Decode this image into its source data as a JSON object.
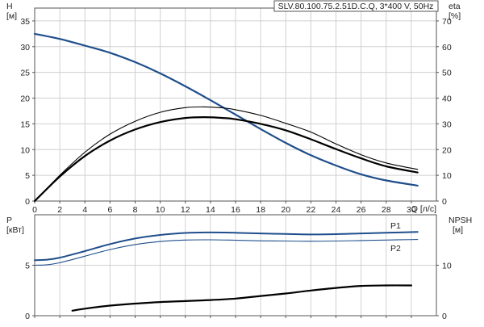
{
  "colors": {
    "head_curve": "#1f4e8c",
    "eta_curve": "#000000",
    "p1_curve": "#1f4e8c",
    "p2_curve": "#1f4e8c",
    "npsh_curve": "#000000",
    "grid": "#d0d0d0",
    "frame": "#555555"
  },
  "chart_data": [
    {
      "type": "line",
      "title": "SLV.80.100.75.2.51D.C.Q, 3*400 V, 50Hz",
      "xlabel": "Q [л/с]",
      "x_unit_label": "Q [л/с]",
      "x_ticks": [
        0,
        2,
        4,
        6,
        8,
        10,
        12,
        14,
        16,
        18,
        20,
        22,
        24,
        26,
        28,
        30
      ],
      "xlim": [
        0,
        32
      ],
      "left_axis": {
        "label": "H",
        "unit": "[м]",
        "ticks": [
          0,
          5,
          10,
          15,
          20,
          25,
          30,
          35
        ],
        "lim": [
          0,
          37.5
        ]
      },
      "right_axis": {
        "label": "eta",
        "unit": "[%]",
        "ticks": [
          0,
          10,
          20,
          30,
          40,
          50,
          60,
          70
        ],
        "lim": [
          0,
          75
        ]
      },
      "grid": true,
      "series": [
        {
          "axis": "left",
          "style": "head",
          "x": [
            0,
            2,
            4,
            6,
            8,
            10,
            12,
            14,
            16,
            18,
            20,
            22,
            24,
            26,
            28,
            30.5
          ],
          "y": [
            32.5,
            31.5,
            30.2,
            28.8,
            27.0,
            24.8,
            22.3,
            19.6,
            16.8,
            14.0,
            11.3,
            8.9,
            6.9,
            5.2,
            4.0,
            3.0
          ]
        },
        {
          "axis": "right",
          "style": "eta_upper",
          "x": [
            0,
            2,
            4,
            6,
            8,
            10,
            12,
            13.5,
            15,
            16,
            18,
            20,
            22,
            24,
            26,
            28,
            30.5
          ],
          "y": [
            0,
            10,
            19,
            26,
            31,
            34.5,
            36.3,
            36.6,
            36.2,
            35.5,
            33.3,
            30.2,
            26.8,
            22.2,
            18.0,
            14.8,
            12.3
          ]
        },
        {
          "axis": "right",
          "style": "eta_lower",
          "x": [
            0,
            2,
            4,
            6,
            8,
            10,
            12,
            13.5,
            15,
            16,
            18,
            20,
            22,
            24,
            26,
            28,
            30.5
          ],
          "y": [
            0,
            9.5,
            17.5,
            23.5,
            27.8,
            30.7,
            32.3,
            32.6,
            32.3,
            31.8,
            30.0,
            27.5,
            24.0,
            20.2,
            16.6,
            13.5,
            11.1
          ]
        }
      ]
    },
    {
      "type": "line",
      "xlim": [
        0,
        32
      ],
      "left_axis": {
        "label": "P",
        "unit": "[кВт]",
        "ticks": [
          0,
          5
        ],
        "lim": [
          0,
          10
        ]
      },
      "right_axis": {
        "label": "NPSH",
        "unit": "[м]",
        "ticks": [
          0,
          10
        ],
        "lim": [
          0,
          20
        ]
      },
      "grid": true,
      "series": [
        {
          "name": "P1",
          "axis": "left",
          "style": "p1",
          "x": [
            0,
            1,
            2,
            4,
            6,
            8,
            10,
            12,
            14,
            16,
            18,
            20,
            22,
            24,
            26,
            28,
            30.5
          ],
          "y": [
            5.5,
            5.55,
            5.75,
            6.4,
            7.1,
            7.65,
            8.0,
            8.2,
            8.25,
            8.22,
            8.15,
            8.1,
            8.05,
            8.08,
            8.15,
            8.22,
            8.3
          ]
        },
        {
          "name": "P2",
          "axis": "left",
          "style": "p2",
          "x": [
            0,
            1,
            2,
            4,
            6,
            8,
            10,
            12,
            14,
            16,
            18,
            20,
            22,
            24,
            26,
            28,
            30.5
          ],
          "y": [
            5.0,
            5.05,
            5.25,
            5.9,
            6.55,
            7.05,
            7.35,
            7.5,
            7.52,
            7.48,
            7.42,
            7.4,
            7.38,
            7.4,
            7.45,
            7.5,
            7.55
          ]
        },
        {
          "axis": "right",
          "style": "npsh",
          "x": [
            3,
            4,
            6,
            8,
            10,
            12,
            14,
            16,
            18,
            20,
            22,
            24,
            26,
            28,
            30
          ],
          "y": [
            1.0,
            1.4,
            2.0,
            2.4,
            2.7,
            2.9,
            3.1,
            3.4,
            3.9,
            4.4,
            5.0,
            5.5,
            5.9,
            6.0,
            6.0
          ]
        }
      ]
    }
  ]
}
